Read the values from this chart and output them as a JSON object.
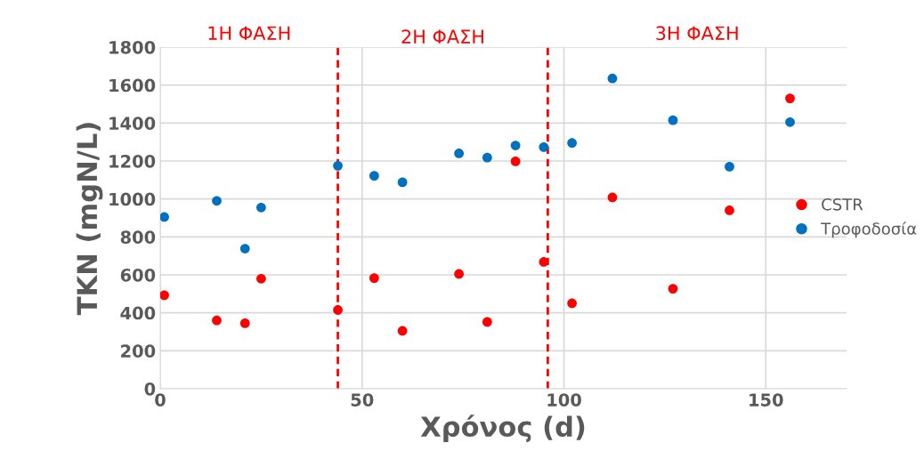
{
  "chart_data": {
    "type": "scatter",
    "xlabel": "Χρόνος (d)",
    "ylabel": "TKN (mgN/L)",
    "x": [
      1,
      14,
      21,
      25,
      44,
      53,
      60,
      74,
      81,
      88,
      95,
      102,
      112,
      127,
      141,
      156
    ],
    "series": [
      {
        "name": "CSTR",
        "color": "#ff0000",
        "values": [
          493,
          360,
          345,
          580,
          415,
          583,
          305,
          605,
          352,
          1198,
          668,
          450,
          1008,
          527,
          940,
          1530
        ]
      },
      {
        "name": "Τροφοδοσία",
        "color": "#0070c0",
        "values": [
          905,
          990,
          738,
          955,
          1175,
          1122,
          1088,
          1240,
          1218,
          1282,
          1273,
          1295,
          1635,
          1415,
          1170,
          1405
        ]
      }
    ],
    "xlim": [
      0,
      170
    ],
    "xticks": [
      0,
      50,
      100,
      150
    ],
    "ylim": [
      0,
      1800
    ],
    "yticks": [
      0,
      200,
      400,
      600,
      800,
      1000,
      1200,
      1400,
      1600,
      1800
    ],
    "ref_lines": [
      {
        "axis": "x",
        "value": 44,
        "color": "#ff0000",
        "line_style": "dashed"
      },
      {
        "axis": "x",
        "value": 96,
        "color": "#ff0000",
        "line_style": "dashed"
      }
    ],
    "annotations": [
      "1Η ΦΑΣΗ",
      "2Η ΦΑΣΗ",
      "3Η ΦΑΣΗ"
    ],
    "grid": true,
    "legend": "right",
    "marker": "circle"
  }
}
